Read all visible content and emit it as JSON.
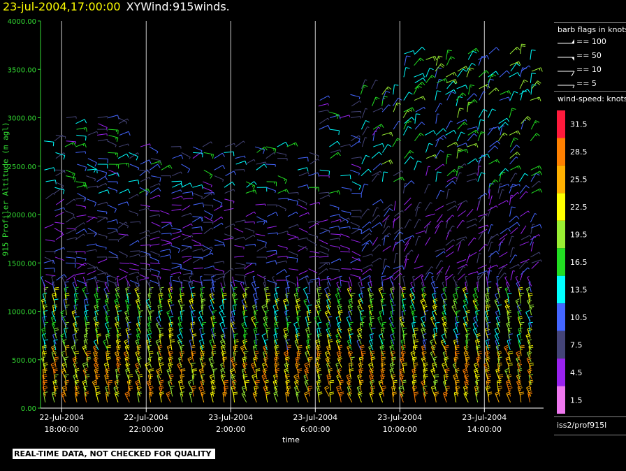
{
  "header": {
    "timestamp": "23-jul-2004,17:00:00",
    "product": "XYWind:915winds."
  },
  "chart_data": {
    "type": "wind-barb time-height",
    "ylabel": "915 Profiler Altitude (m agl)",
    "xlabel": "time",
    "ylim": [
      0,
      4000
    ],
    "yticks": [
      "0.00",
      "500.00",
      "1000.00",
      "1500.00",
      "2000.00",
      "2500.00",
      "3000.00",
      "3500.00",
      "4000.00"
    ],
    "xticks": [
      {
        "date": "22-Jul-2004",
        "time": "18:00:00"
      },
      {
        "date": "22-Jul-2004",
        "time": "22:00:00"
      },
      {
        "date": "23-Jul-2004",
        "time": "2:00:00"
      },
      {
        "date": "23-Jul-2004",
        "time": "6:00:00"
      },
      {
        "date": "23-Jul-2004",
        "time": "10:00:00"
      },
      {
        "date": "23-Jul-2004",
        "time": "14:00:00"
      }
    ],
    "time_range_hours": [
      -1,
      22.8
    ],
    "grid": "vertical lines at 4-hour ticks",
    "colorbar": {
      "title": "wind-speed: knots",
      "values": [
        "31.5",
        "28.5",
        "25.5",
        "22.5",
        "19.5",
        "16.5",
        "13.5",
        "10.5",
        "7.5",
        "4.5",
        "1.5"
      ],
      "colors": [
        "#ff1a3c",
        "#ff8000",
        "#ffb000",
        "#ffff00",
        "#99ee33",
        "#22dd22",
        "#00ffff",
        "#4466ff",
        "#444477",
        "#9922ee",
        "#ee77ee"
      ]
    },
    "barb_legend": {
      "title": "barb flags in knots",
      "items": [
        "== 100",
        "== 50",
        "== 10",
        "== 5"
      ]
    }
  },
  "footer": {
    "disclaimer": "REAL-TIME DATA, NOT CHECKED FOR QUALITY",
    "source": "iss2/prof915l"
  }
}
